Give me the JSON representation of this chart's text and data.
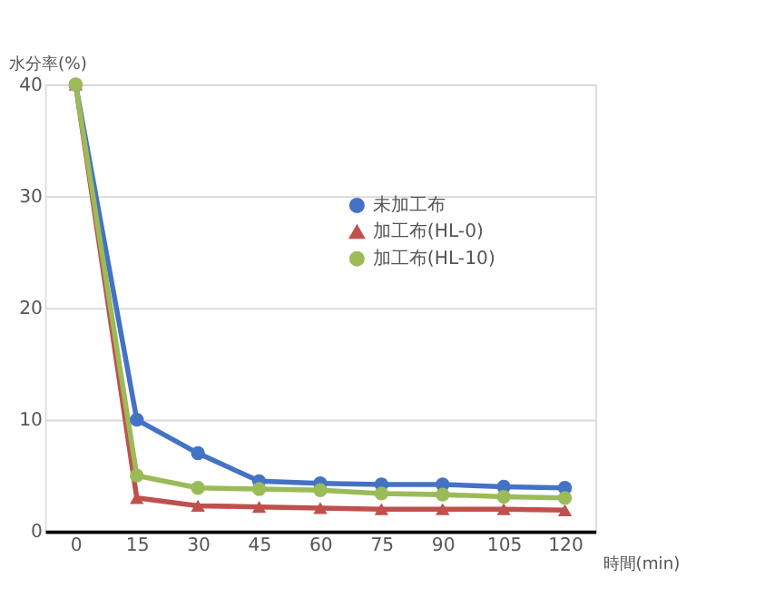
{
  "chart_data": {
    "type": "line",
    "ylabel": "水分率(%)",
    "xlabel": "時間(min)",
    "categories": [
      "0",
      "15",
      "30",
      "45",
      "60",
      "75",
      "90",
      "105",
      "120"
    ],
    "series": [
      {
        "name": "未加工布",
        "color": "#4472c4",
        "marker": "circle",
        "values": [
          40,
          10,
          7,
          4.5,
          4.3,
          4.2,
          4.2,
          4.0,
          3.9
        ]
      },
      {
        "name": "加工布(HL-0)",
        "color": "#c0504d",
        "marker": "triangle",
        "values": [
          40,
          3,
          2.3,
          2.2,
          2.1,
          2.0,
          2.0,
          2.0,
          1.9
        ]
      },
      {
        "name": "加工布(HL-10)",
        "color": "#9bbb59",
        "marker": "circle",
        "values": [
          40,
          5,
          3.9,
          3.8,
          3.7,
          3.4,
          3.3,
          3.1,
          3.0
        ]
      }
    ],
    "ylim": [
      0,
      40
    ],
    "yticks": [
      0,
      10,
      20,
      30,
      40
    ],
    "grid": "y",
    "legend": "right",
    "line_style": "solid"
  }
}
